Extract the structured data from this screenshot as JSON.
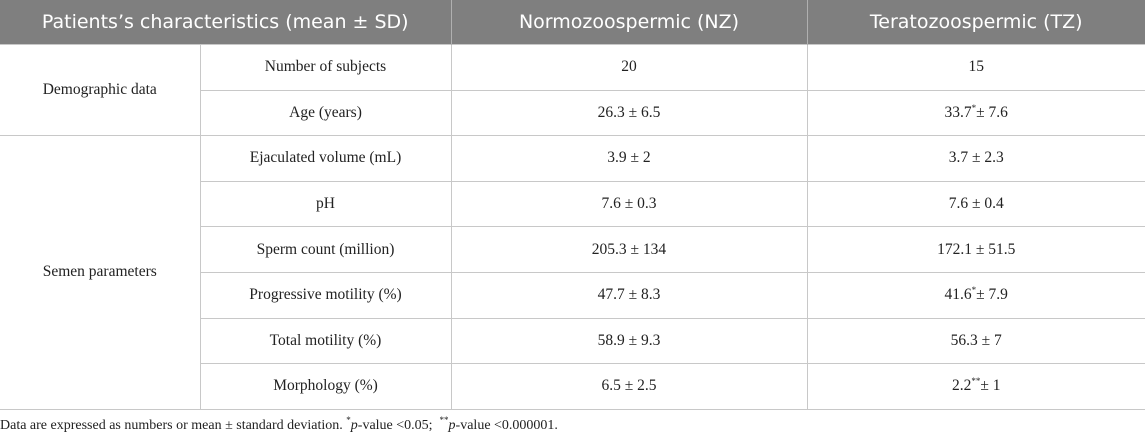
{
  "header": {
    "col1": "Patients’s characteristics (mean ± SD)",
    "col2": "Normozoospermic (NZ)",
    "col3": "Teratozoospermic (TZ)"
  },
  "groups": {
    "demographic": "Demographic data",
    "semen": "Semen parameters"
  },
  "rows": [
    {
      "label": "Number of subjects",
      "nz": "20",
      "tz": "15"
    },
    {
      "label": "Age (years)",
      "nz": "26.3 ± 6.5",
      "tz_value": "33.7",
      "tz_mark": "*",
      "tz_sd": "± 7.6"
    },
    {
      "label": "Ejaculated volume (mL)",
      "nz": "3.9 ± 2",
      "tz": "3.7 ± 2.3"
    },
    {
      "label": "pH",
      "nz": "7.6 ± 0.3",
      "tz": "7.6 ± 0.4"
    },
    {
      "label": "Sperm count (million)",
      "nz": "205.3 ± 134",
      "tz": "172.1 ± 51.5"
    },
    {
      "label": "Progressive motility (%)",
      "nz": "47.7 ± 8.3",
      "tz_value": "41.6",
      "tz_mark": "*",
      "tz_sd": "± 7.9"
    },
    {
      "label": "Total motility (%)",
      "nz": "58.9 ± 9.3",
      "tz": "56.3 ± 7"
    },
    {
      "label": "Morphology (%)",
      "nz": "6.5 ± 2.5",
      "tz_value": "2.2",
      "tz_mark": "**",
      "tz_sd": "± 1"
    }
  ],
  "footnote": {
    "text": "Data are expressed as numbers or mean ± standard deviation.",
    "mark1": "*",
    "p1_letter": "p",
    "p1_rest": "-value <0.05;",
    "mark2": "**",
    "p2_letter": "p",
    "p2_rest": "-value <0.000001."
  }
}
